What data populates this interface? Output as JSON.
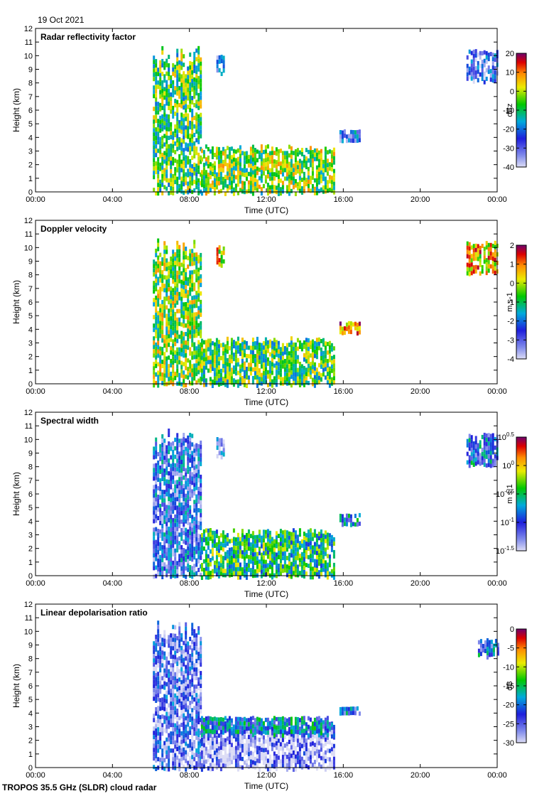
{
  "date": "19 Oct 2021",
  "footer": "TROPOS 35.5 GHz (SLDR) cloud radar",
  "chart_data": [
    {
      "type": "heatmap",
      "title": "Radar reflectivity factor",
      "xlabel": "Time (UTC)",
      "ylabel": "Height (km)",
      "xticks": [
        "00:00",
        "04:00",
        "08:00",
        "12:00",
        "16:00",
        "20:00",
        "00:00"
      ],
      "yticks": [
        "0",
        "1",
        "2",
        "3",
        "4",
        "5",
        "6",
        "7",
        "8",
        "9",
        "10",
        "11",
        "12"
      ],
      "xlim_hours": [
        0,
        24
      ],
      "ylim_km": [
        0,
        12
      ],
      "colorbar": {
        "label": "dBz",
        "ticks": [
          "-40",
          "-30",
          "-20",
          "-10",
          "0",
          "10",
          "20"
        ],
        "range": [
          -40,
          20
        ]
      },
      "features": [
        {
          "name": "deep cloud",
          "t0": 6.1,
          "t1": 8.6,
          "h0": 0.0,
          "h1": 10.8,
          "level": 0.55
        },
        {
          "name": "low cloud layer",
          "t0": 8.6,
          "t1": 15.5,
          "h0": 0.0,
          "h1": 3.5,
          "level": 0.6
        },
        {
          "name": "cirrus patch",
          "t0": 9.4,
          "t1": 9.8,
          "h0": 8.8,
          "h1": 10.2,
          "level": 0.2
        },
        {
          "name": "mid-level patch",
          "t0": 15.8,
          "t1": 16.9,
          "h0": 3.8,
          "h1": 4.6,
          "level": 0.25
        },
        {
          "name": "late cirrus",
          "t0": 22.4,
          "t1": 24.0,
          "h0": 8.2,
          "h1": 10.5,
          "level": 0.2
        }
      ]
    },
    {
      "type": "heatmap",
      "title": "Doppler velocity",
      "xlabel": "Time (UTC)",
      "ylabel": "Height (km)",
      "xticks": [
        "00:00",
        "04:00",
        "08:00",
        "12:00",
        "16:00",
        "20:00",
        "00:00"
      ],
      "yticks": [
        "0",
        "1",
        "2",
        "3",
        "4",
        "5",
        "6",
        "7",
        "8",
        "9",
        "10",
        "11",
        "12"
      ],
      "xlim_hours": [
        0,
        24
      ],
      "ylim_km": [
        0,
        12
      ],
      "colorbar": {
        "label": "m s-1",
        "ticks": [
          "-4",
          "-3",
          "-2",
          "-1",
          "0",
          "1",
          "2"
        ],
        "range": [
          -4,
          2
        ]
      },
      "features": [
        {
          "name": "deep cloud",
          "t0": 6.1,
          "t1": 8.6,
          "h0": 0.0,
          "h1": 10.8,
          "level": 0.6
        },
        {
          "name": "low cloud layer",
          "t0": 8.6,
          "t1": 15.5,
          "h0": 0.0,
          "h1": 3.5,
          "level": 0.55
        },
        {
          "name": "cirrus patch",
          "t0": 9.4,
          "t1": 9.8,
          "h0": 8.8,
          "h1": 10.2,
          "level": 0.72
        },
        {
          "name": "mid-level patch",
          "t0": 15.8,
          "t1": 16.9,
          "h0": 3.8,
          "h1": 4.6,
          "level": 0.85
        },
        {
          "name": "late cirrus",
          "t0": 22.4,
          "t1": 24.0,
          "h0": 8.2,
          "h1": 10.5,
          "level": 0.75
        }
      ]
    },
    {
      "type": "heatmap",
      "title": "Spectral width",
      "xlabel": "Time (UTC)",
      "ylabel": "Height (km)",
      "xticks": [
        "00:00",
        "04:00",
        "08:00",
        "12:00",
        "16:00",
        "20:00",
        "00:00"
      ],
      "yticks": [
        "0",
        "1",
        "2",
        "3",
        "4",
        "5",
        "6",
        "7",
        "8",
        "9",
        "10",
        "11",
        "12"
      ],
      "xlim_hours": [
        0,
        24
      ],
      "ylim_km": [
        0,
        12
      ],
      "colorbar": {
        "label": "m s-1",
        "ticks": [
          "10^-1.5",
          "10^-1",
          "10^-0.5",
          "10^0",
          "10^0.5"
        ],
        "range": [
          -1.5,
          0.5
        ]
      },
      "features": [
        {
          "name": "deep cloud",
          "t0": 6.1,
          "t1": 8.6,
          "h0": 0.0,
          "h1": 10.8,
          "level": 0.25
        },
        {
          "name": "low cloud layer",
          "t0": 8.6,
          "t1": 15.5,
          "h0": 0.0,
          "h1": 3.5,
          "level": 0.5
        },
        {
          "name": "cirrus patch",
          "t0": 9.4,
          "t1": 9.8,
          "h0": 8.8,
          "h1": 10.2,
          "level": 0.2
        },
        {
          "name": "mid-level patch",
          "t0": 15.8,
          "t1": 16.9,
          "h0": 3.8,
          "h1": 4.6,
          "level": 0.35
        },
        {
          "name": "late cirrus",
          "t0": 22.4,
          "t1": 24.0,
          "h0": 8.2,
          "h1": 10.5,
          "level": 0.3
        }
      ]
    },
    {
      "type": "heatmap",
      "title": "Linear depolarisation ratio",
      "xlabel": "Time (UTC)",
      "ylabel": "Height (km)",
      "xticks": [
        "00:00",
        "04:00",
        "08:00",
        "12:00",
        "16:00",
        "20:00",
        "00:00"
      ],
      "yticks": [
        "0",
        "1",
        "2",
        "3",
        "4",
        "5",
        "6",
        "7",
        "8",
        "9",
        "10",
        "11",
        "12"
      ],
      "xlim_hours": [
        0,
        24
      ],
      "ylim_km": [
        0,
        12
      ],
      "colorbar": {
        "label": "dB",
        "ticks": [
          "-30",
          "-25",
          "-20",
          "-15",
          "-10",
          "-5",
          "0"
        ],
        "range": [
          -30,
          0
        ]
      },
      "features": [
        {
          "name": "deep cloud",
          "t0": 6.1,
          "t1": 8.6,
          "h0": 0.0,
          "h1": 10.8,
          "level": 0.18
        },
        {
          "name": "low cloud layer",
          "t0": 8.6,
          "t1": 15.5,
          "h0": 0.0,
          "h1": 3.5,
          "level": 0.08
        },
        {
          "name": "cloud top layer",
          "t0": 8.6,
          "t1": 15.5,
          "h0": 2.5,
          "h1": 3.8,
          "level": 0.35
        },
        {
          "name": "mid-level patch",
          "t0": 15.8,
          "t1": 16.9,
          "h0": 4.0,
          "h1": 4.5,
          "level": 0.3
        },
        {
          "name": "late cirrus",
          "t0": 23.0,
          "t1": 24.0,
          "h0": 8.2,
          "h1": 9.5,
          "level": 0.3
        }
      ]
    }
  ]
}
